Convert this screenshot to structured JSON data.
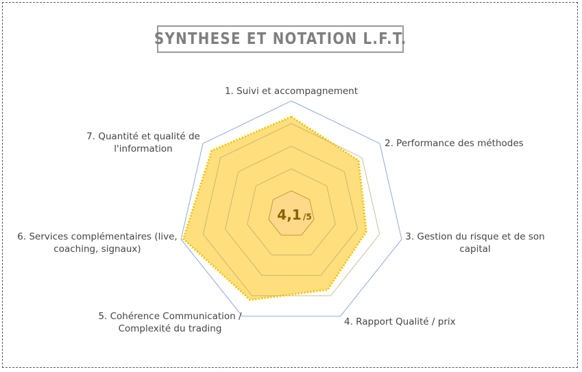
{
  "title": "SYNTHESE ET NOTATION L.F.T.",
  "score": {
    "value": "4,1",
    "suffix": "/5"
  },
  "colors": {
    "fill": "#FFD966",
    "outline": "#F2C200",
    "grid_outer": "#8EA9DB",
    "grid_inner": "#B4A46A",
    "badge": "#FFD98A"
  },
  "chart_data": {
    "type": "radar",
    "title": "SYNTHESE ET NOTATION L.F.T.",
    "rmax": 5,
    "axes": [
      [
        "1. Suivi et accompagnement"
      ],
      [
        "2. Performance des méthodes"
      ],
      [
        "3. Gestion du risque et de son",
        "capital"
      ],
      [
        "4. Rapport Qualité / prix"
      ],
      [
        "5. Cohérence Communication /",
        "Complexité du trading"
      ],
      [
        "6. Services complémentaires (live,",
        "coaching, signaux)"
      ],
      [
        "7. Quantité et qualité de",
        "l'information"
      ]
    ],
    "values": [
      4.3,
      3.8,
      3.4,
      3.7,
      4.2,
      4.9,
      4.5
    ],
    "grid_levels": [
      1,
      2,
      3,
      4,
      5
    ]
  }
}
